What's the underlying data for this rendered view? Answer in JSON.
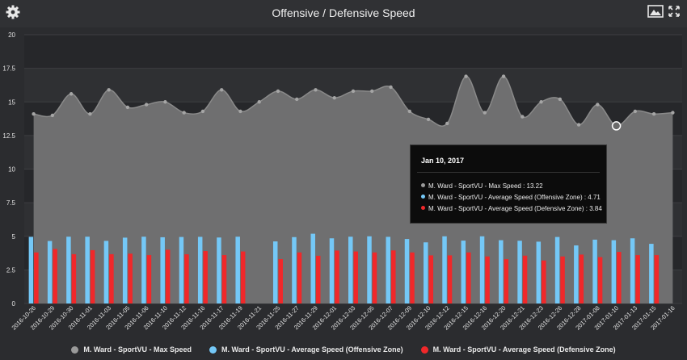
{
  "header": {
    "title": "Offensive / Defensive Speed",
    "settings_icon": "gear-icon",
    "image_icon": "image-icon",
    "fullscreen_icon": "expand-icon"
  },
  "colors": {
    "background": "#2b2c2f",
    "max": "#9a9a9a",
    "off": "#74c8f7",
    "def": "#f0282a"
  },
  "chart_data": {
    "type": "line",
    "title": "Offensive / Defensive Speed",
    "xlabel": "",
    "ylabel": "",
    "ylim": [
      0,
      20
    ],
    "yticks": [
      "0",
      "2.5",
      "5",
      "7.5",
      "10",
      "12.5",
      "15",
      "17.5",
      "20"
    ],
    "grid": true,
    "legend_position": "bottom",
    "categories": [
      "2016-10-26",
      "2016-10-29",
      "2016-10-30",
      "2016-11-01",
      "2016-11-03",
      "2016-11-05",
      "2016-11-06",
      "2016-11-10",
      "2016-11-12",
      "2016-11-16",
      "2016-11-17",
      "2016-11-19",
      "2016-11-21",
      "2016-11-25",
      "2016-11-27",
      "2016-11-29",
      "2016-12-01",
      "2016-12-03",
      "2016-12-05",
      "2016-12-07",
      "2016-12-09",
      "2016-12-10",
      "2016-12-12",
      "2016-12-15",
      "2016-12-16",
      "2016-12-20",
      "2016-12-21",
      "2016-12-23",
      "2016-12-26",
      "2016-12-28",
      "2017-01-08",
      "2017-01-10",
      "2017-01-13",
      "2017-01-15",
      "2017-01-16"
    ],
    "series": [
      {
        "name": "M. Ward - SportVU - Max Speed",
        "type": "area",
        "values": [
          14.1,
          14.0,
          15.6,
          14.1,
          15.9,
          14.6,
          14.8,
          15.0,
          14.2,
          14.3,
          15.9,
          14.3,
          15.0,
          15.8,
          15.2,
          15.9,
          15.3,
          15.8,
          15.8,
          16.1,
          14.3,
          13.7,
          13.4,
          16.9,
          14.2,
          16.9,
          13.9,
          15.0,
          15.2,
          13.3,
          14.8,
          13.22,
          14.3,
          14.1,
          14.2
        ]
      },
      {
        "name": "M. Ward - SportVU - Average Speed (Offensive Zone)",
        "type": "bar",
        "values": [
          4.96,
          4.65,
          4.97,
          4.97,
          4.66,
          4.9,
          4.97,
          4.93,
          4.95,
          4.96,
          4.91,
          4.97,
          null,
          4.62,
          4.94,
          5.19,
          4.85,
          4.97,
          5.0,
          4.96,
          4.8,
          4.55,
          5.0,
          4.68,
          5.0,
          4.71,
          4.67,
          4.6,
          4.95,
          4.32,
          4.75,
          4.71,
          4.85,
          4.44,
          null
        ]
      },
      {
        "name": "M. Ward - SportVU - Average Speed (Defensive Zone)",
        "type": "bar",
        "values": [
          3.8,
          4.06,
          3.67,
          3.97,
          3.67,
          3.71,
          3.6,
          4.0,
          3.66,
          3.9,
          3.6,
          3.87,
          null,
          3.3,
          3.8,
          3.55,
          3.94,
          3.87,
          3.8,
          3.95,
          3.8,
          3.58,
          3.58,
          3.8,
          3.5,
          3.3,
          3.56,
          3.2,
          3.5,
          3.64,
          3.45,
          3.84,
          3.6,
          3.6,
          null
        ]
      }
    ]
  },
  "tooltip": {
    "date": "Jan 10, 2017",
    "rows": [
      "M. Ward - SportVU - Max Speed : 13.22",
      "M. Ward - SportVU - Average Speed (Offensive Zone) : 4.71",
      "M. Ward - SportVU - Average Speed (Defensive Zone) : 3.84"
    ]
  },
  "legend": [
    "M. Ward - SportVU - Max Speed",
    "M. Ward - SportVU - Average Speed (Offensive Zone)",
    "M. Ward - SportVU - Average Speed (Defensive Zone)"
  ]
}
